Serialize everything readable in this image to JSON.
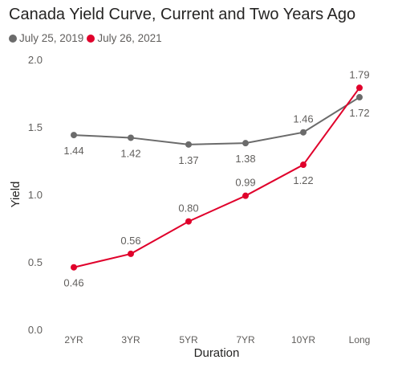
{
  "chart_data": {
    "type": "line",
    "title": "Canada Yield Curve, Current and Two Years Ago",
    "xlabel": "Duration",
    "ylabel": "Yield",
    "categories": [
      "2YR",
      "3YR",
      "5YR",
      "7YR",
      "10YR",
      "Long"
    ],
    "ylim": [
      0,
      2
    ],
    "yticks": [
      "0.0",
      "0.5",
      "1.0",
      "1.5",
      "2.0"
    ],
    "legend_position": "top-left",
    "grid": false,
    "series": [
      {
        "name": "July 25, 2019",
        "color": "#6b6b6b",
        "values": [
          1.44,
          1.42,
          1.37,
          1.38,
          1.46,
          1.72
        ],
        "labels": [
          "1.44",
          "1.42",
          "1.37",
          "1.38",
          "1.46",
          "1.72"
        ]
      },
      {
        "name": "July 26, 2021",
        "color": "#e0002b",
        "values": [
          0.46,
          0.56,
          0.8,
          0.99,
          1.22,
          1.79
        ],
        "labels": [
          "0.46",
          "0.56",
          "0.80",
          "0.99",
          "1.22",
          "1.79"
        ]
      }
    ]
  }
}
